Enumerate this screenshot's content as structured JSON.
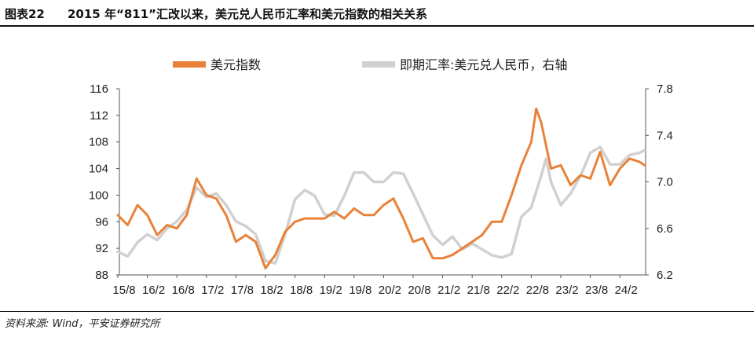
{
  "figure": {
    "label": "图表22",
    "title": "2015 年“811”汇改以来，美元兑人民币汇率和美元指数的相关关系",
    "source": "资料来源: Wind，平安证券研究所"
  },
  "chart_data": {
    "type": "line",
    "legend_position": "top",
    "x_ticks": [
      "15/8",
      "16/2",
      "16/8",
      "17/2",
      "17/8",
      "18/2",
      "18/8",
      "19/2",
      "19/8",
      "20/2",
      "20/8",
      "21/2",
      "21/8",
      "22/2",
      "22/8",
      "23/2",
      "23/8",
      "24/2"
    ],
    "y_left": {
      "ticks": [
        "88",
        "92",
        "96",
        "100",
        "104",
        "108",
        "112",
        "116"
      ],
      "range": [
        88,
        116
      ]
    },
    "y_right": {
      "ticks": [
        "6.2",
        "6.6",
        "7.0",
        "7.4",
        "7.8"
      ],
      "range": [
        6.2,
        7.8
      ]
    },
    "series": [
      {
        "name": "美元指数",
        "axis": "left",
        "color": "#E8823A",
        "points": [
          [
            "15/8",
            97
          ],
          [
            "15/10",
            95.5
          ],
          [
            "15/12",
            98.5
          ],
          [
            "16/2",
            97
          ],
          [
            "16/4",
            94
          ],
          [
            "16/6",
            95.5
          ],
          [
            "16/8",
            95
          ],
          [
            "16/10",
            97
          ],
          [
            "16/12",
            102.5
          ],
          [
            "17/2",
            100
          ],
          [
            "17/4",
            99.5
          ],
          [
            "17/6",
            97
          ],
          [
            "17/8",
            93
          ],
          [
            "17/10",
            94
          ],
          [
            "17/12",
            93
          ],
          [
            "18/2",
            89
          ],
          [
            "18/4",
            91
          ],
          [
            "18/6",
            94.5
          ],
          [
            "18/8",
            96
          ],
          [
            "18/10",
            96.5
          ],
          [
            "18/12",
            96.5
          ],
          [
            "19/2",
            96.5
          ],
          [
            "19/4",
            97.5
          ],
          [
            "19/6",
            96.5
          ],
          [
            "19/8",
            98
          ],
          [
            "19/10",
            97
          ],
          [
            "19/12",
            97
          ],
          [
            "20/2",
            98.5
          ],
          [
            "20/4",
            99.5
          ],
          [
            "20/6",
            96.5
          ],
          [
            "20/8",
            93
          ],
          [
            "20/10",
            93.5
          ],
          [
            "20/12",
            90.5
          ],
          [
            "21/2",
            90.5
          ],
          [
            "21/4",
            91
          ],
          [
            "21/6",
            92
          ],
          [
            "21/8",
            93
          ],
          [
            "21/10",
            94
          ],
          [
            "21/12",
            96
          ],
          [
            "22/2",
            96
          ],
          [
            "22/4",
            100
          ],
          [
            "22/6",
            104.5
          ],
          [
            "22/8",
            108
          ],
          [
            "22/9",
            113
          ],
          [
            "22/10",
            111
          ],
          [
            "22/12",
            104
          ],
          [
            "23/2",
            104.5
          ],
          [
            "23/4",
            101.5
          ],
          [
            "23/6",
            103
          ],
          [
            "23/8",
            102.5
          ],
          [
            "23/10",
            106.5
          ],
          [
            "23/12",
            101.5
          ],
          [
            "24/2",
            104
          ],
          [
            "24/4",
            105.5
          ],
          [
            "24/6",
            105
          ],
          [
            "24/7",
            104.5
          ]
        ]
      },
      {
        "name": "即期汇率:美元兑人民币，右轴",
        "axis": "right",
        "color": "#D0D0D0",
        "points": [
          [
            "15/8",
            6.4
          ],
          [
            "15/10",
            6.36
          ],
          [
            "15/12",
            6.48
          ],
          [
            "16/2",
            6.55
          ],
          [
            "16/4",
            6.5
          ],
          [
            "16/6",
            6.6
          ],
          [
            "16/8",
            6.66
          ],
          [
            "16/10",
            6.76
          ],
          [
            "16/12",
            6.95
          ],
          [
            "17/2",
            6.87
          ],
          [
            "17/4",
            6.9
          ],
          [
            "17/6",
            6.8
          ],
          [
            "17/8",
            6.66
          ],
          [
            "17/10",
            6.62
          ],
          [
            "17/12",
            6.55
          ],
          [
            "18/2",
            6.32
          ],
          [
            "18/4",
            6.3
          ],
          [
            "18/6",
            6.55
          ],
          [
            "18/8",
            6.85
          ],
          [
            "18/10",
            6.93
          ],
          [
            "18/12",
            6.88
          ],
          [
            "19/2",
            6.72
          ],
          [
            "19/4",
            6.71
          ],
          [
            "19/6",
            6.88
          ],
          [
            "19/8",
            7.08
          ],
          [
            "19/10",
            7.08
          ],
          [
            "19/12",
            7.0
          ],
          [
            "20/2",
            7.0
          ],
          [
            "20/4",
            7.08
          ],
          [
            "20/6",
            7.07
          ],
          [
            "20/8",
            6.9
          ],
          [
            "20/10",
            6.72
          ],
          [
            "20/12",
            6.54
          ],
          [
            "21/2",
            6.46
          ],
          [
            "21/4",
            6.53
          ],
          [
            "21/6",
            6.42
          ],
          [
            "21/8",
            6.47
          ],
          [
            "21/10",
            6.42
          ],
          [
            "21/12",
            6.37
          ],
          [
            "22/2",
            6.35
          ],
          [
            "22/4",
            6.38
          ],
          [
            "22/6",
            6.7
          ],
          [
            "22/8",
            6.78
          ],
          [
            "22/10",
            7.05
          ],
          [
            "22/11",
            7.2
          ],
          [
            "22/12",
            7.0
          ],
          [
            "23/2",
            6.8
          ],
          [
            "23/4",
            6.9
          ],
          [
            "23/6",
            7.05
          ],
          [
            "23/8",
            7.25
          ],
          [
            "23/10",
            7.3
          ],
          [
            "23/12",
            7.15
          ],
          [
            "24/2",
            7.15
          ],
          [
            "24/4",
            7.23
          ],
          [
            "24/6",
            7.25
          ],
          [
            "24/7",
            7.27
          ]
        ]
      }
    ]
  }
}
